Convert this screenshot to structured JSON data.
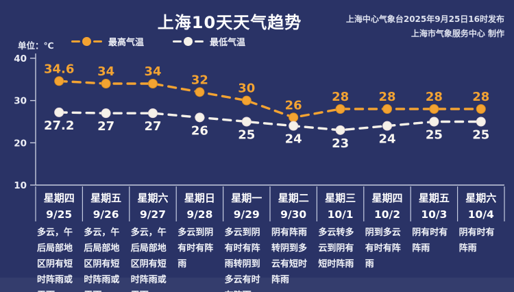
{
  "header": {
    "title": "上海10天天气趋势",
    "source_line1": "上海中心气象台2025年9月25日16时发布",
    "source_line2": "上海市气象服务中心 制作"
  },
  "legend": {
    "max_label": "最高气温",
    "min_label": "最低气温"
  },
  "unit_label": "单位：℃",
  "colors": {
    "background": "#2A3366",
    "max_series": "#F3A332",
    "min_series": "#F5F1E9",
    "axis": "#C7CDDE",
    "value_label_max": "#F3A332",
    "value_label_min": "#FAF7F2",
    "text": "#FFFFFF"
  },
  "chart_data": {
    "type": "line",
    "title": "上海10天天气趋势",
    "unit": "℃",
    "ylim": [
      10,
      40
    ],
    "yticks": [
      40,
      30,
      20,
      10
    ],
    "grid": false,
    "line_style": "dashed",
    "legend_position": "top-left",
    "categories": [
      "9/25",
      "9/26",
      "9/27",
      "9/28",
      "9/29",
      "9/30",
      "10/1",
      "10/2",
      "10/3",
      "10/4"
    ],
    "series": [
      {
        "name": "最高气温",
        "color": "#F3A332",
        "values": [
          34.6,
          34,
          34,
          32,
          30,
          26,
          28,
          28,
          28,
          28
        ]
      },
      {
        "name": "最低气温",
        "color": "#F5F1E9",
        "values": [
          27.2,
          27,
          27,
          26,
          25,
          24,
          23,
          24,
          25,
          25
        ]
      }
    ]
  },
  "days": [
    {
      "weekday": "星期四",
      "date": "9/25",
      "weather": "多云，午后局部地区阴有短时阵雨或雷雨"
    },
    {
      "weekday": "星期五",
      "date": "9/26",
      "weather": "多云，午后局部地区阴有短时阵雨或雷雨"
    },
    {
      "weekday": "星期六",
      "date": "9/27",
      "weather": "多云，午后局部地区阴有短时阵雨或雷雨"
    },
    {
      "weekday": "星期日",
      "date": "9/28",
      "weather": "多云到阴有时有阵雨"
    },
    {
      "weekday": "星期一",
      "date": "9/29",
      "weather": "多云到阴有时有阵雨转阴到多云有时有阵雨"
    },
    {
      "weekday": "星期二",
      "date": "9/30",
      "weather": "阴有阵雨转阴到多云有短时阵雨"
    },
    {
      "weekday": "星期三",
      "date": "10/1",
      "weather": "多云转多云到阴有短时阵雨"
    },
    {
      "weekday": "星期四",
      "date": "10/2",
      "weather": "阴到多云有时有阵雨"
    },
    {
      "weekday": "星期五",
      "date": "10/3",
      "weather": "阴有时有阵雨"
    },
    {
      "weekday": "星期六",
      "date": "10/4",
      "weather": "阴有时有阵雨"
    }
  ]
}
